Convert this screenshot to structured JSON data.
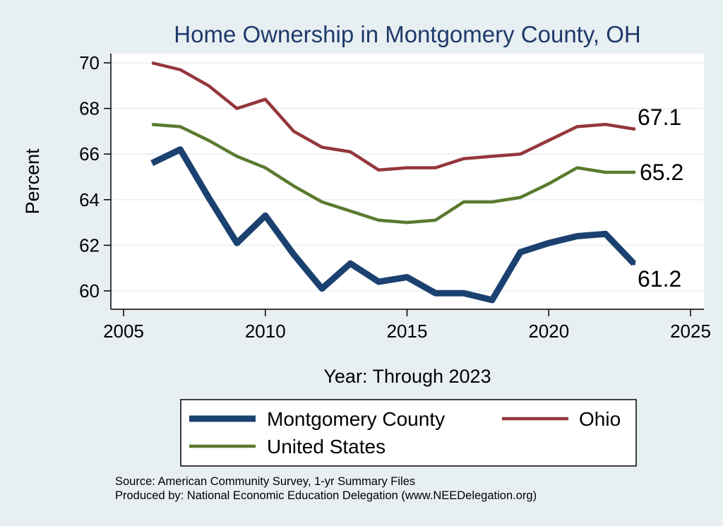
{
  "chart_data": {
    "type": "line",
    "title": "Home Ownership in Montgomery County, OH",
    "xlabel": "Year: Through 2023",
    "ylabel": "Percent",
    "xlim": [
      2005,
      2025
    ],
    "ylim": [
      59.5,
      70.5
    ],
    "xticks": [
      2005,
      2010,
      2015,
      2020,
      2025
    ],
    "yticks": [
      60,
      62,
      64,
      66,
      68,
      70
    ],
    "x": [
      2006,
      2007,
      2008,
      2009,
      2010,
      2011,
      2012,
      2013,
      2014,
      2015,
      2016,
      2017,
      2018,
      2019,
      2020,
      2021,
      2022,
      2023
    ],
    "series": [
      {
        "name": "Montgomery County",
        "color": "#1a4170",
        "values": [
          65.6,
          66.2,
          64.1,
          62.1,
          63.3,
          61.6,
          60.1,
          61.2,
          60.4,
          60.6,
          59.9,
          59.9,
          59.6,
          61.7,
          62.1,
          62.4,
          62.5,
          61.2
        ],
        "end_label": "61.2"
      },
      {
        "name": "Ohio",
        "color": "#94373c",
        "values": [
          70.0,
          69.7,
          69.0,
          68.0,
          68.4,
          67.0,
          66.3,
          66.1,
          65.3,
          65.4,
          65.4,
          65.8,
          65.9,
          66.0,
          66.6,
          67.2,
          67.3,
          67.1
        ],
        "end_label": "67.1"
      },
      {
        "name": "United States",
        "color": "#5a7a2e",
        "values": [
          67.3,
          67.2,
          66.6,
          65.9,
          65.4,
          64.6,
          63.9,
          63.5,
          63.1,
          63.0,
          63.1,
          63.9,
          63.9,
          64.1,
          64.7,
          65.4,
          65.2,
          65.2
        ],
        "end_label": "65.2"
      }
    ],
    "legend_position": "bottom",
    "grid": true
  },
  "notes": {
    "source": "Source: American Community Survey, 1-yr Summary Files",
    "produced_by": "Produced by: National Economic Education Delegation (www.NEEDelegation.org)"
  }
}
